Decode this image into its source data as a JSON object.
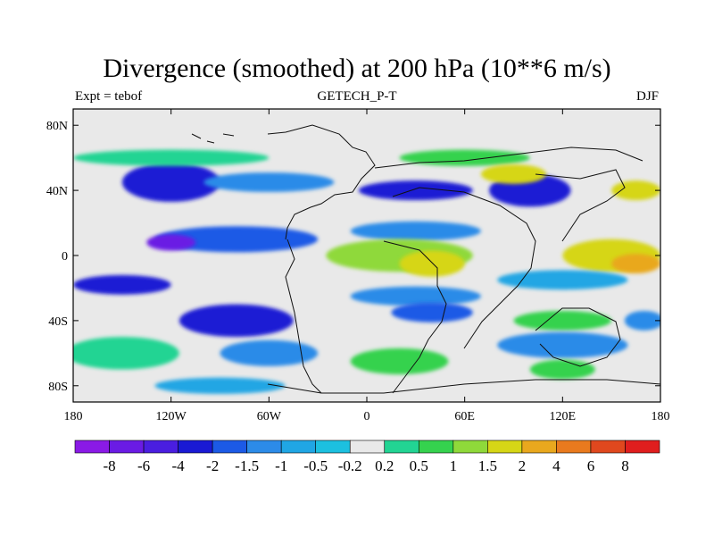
{
  "title": "Divergence (smoothed) at 200 hPa (10**6 m/s)",
  "subtitle_left": "Expt = tebof",
  "subtitle_center": "GETECH_P-T",
  "subtitle_right": "DJF",
  "map": {
    "projection": "cylindrical equidistant",
    "lon_range": [
      -180,
      180
    ],
    "lat_range": [
      -90,
      90
    ],
    "lon_ticks": [
      {
        "value": -180,
        "label": "180"
      },
      {
        "value": -120,
        "label": "120W"
      },
      {
        "value": -60,
        "label": "60W"
      },
      {
        "value": 0,
        "label": "0"
      },
      {
        "value": 60,
        "label": "60E"
      },
      {
        "value": 120,
        "label": "120E"
      },
      {
        "value": 180,
        "label": "180"
      }
    ],
    "lat_ticks": [
      {
        "value": 80,
        "label": "80N"
      },
      {
        "value": 40,
        "label": "40N"
      },
      {
        "value": 0,
        "label": "0"
      },
      {
        "value": -40,
        "label": "40S"
      },
      {
        "value": -80,
        "label": "80S"
      }
    ],
    "field_bands": [
      {
        "lat": 45,
        "lon": -120,
        "rx_deg": 30,
        "ry_deg": 12,
        "level": "-2"
      },
      {
        "lat": 45,
        "lon": -60,
        "rx_deg": 40,
        "ry_deg": 6,
        "level": "-1"
      },
      {
        "lat": 40,
        "lon": 30,
        "rx_deg": 35,
        "ry_deg": 6,
        "level": "-2"
      },
      {
        "lat": 40,
        "lon": 100,
        "rx_deg": 25,
        "ry_deg": 10,
        "level": "-2"
      },
      {
        "lat": 60,
        "lon": 60,
        "rx_deg": 40,
        "ry_deg": 5,
        "level": "1"
      },
      {
        "lat": 50,
        "lon": 90,
        "rx_deg": 20,
        "ry_deg": 6,
        "level": "2"
      },
      {
        "lat": 40,
        "lon": 165,
        "rx_deg": 15,
        "ry_deg": 6,
        "level": "2"
      },
      {
        "lat": 60,
        "lon": -120,
        "rx_deg": 60,
        "ry_deg": 5,
        "level": "0.5"
      },
      {
        "lat": 10,
        "lon": -80,
        "rx_deg": 50,
        "ry_deg": 8,
        "level": "-1.5"
      },
      {
        "lat": 8,
        "lon": -120,
        "rx_deg": 15,
        "ry_deg": 5,
        "level": "-6"
      },
      {
        "lat": 15,
        "lon": 30,
        "rx_deg": 40,
        "ry_deg": 6,
        "level": "-1"
      },
      {
        "lat": 0,
        "lon": 20,
        "rx_deg": 45,
        "ry_deg": 10,
        "level": "1.5"
      },
      {
        "lat": -5,
        "lon": 40,
        "rx_deg": 20,
        "ry_deg": 8,
        "level": "2"
      },
      {
        "lat": 0,
        "lon": 150,
        "rx_deg": 30,
        "ry_deg": 10,
        "level": "2"
      },
      {
        "lat": -5,
        "lon": 165,
        "rx_deg": 15,
        "ry_deg": 6,
        "level": "4"
      },
      {
        "lat": -18,
        "lon": -150,
        "rx_deg": 30,
        "ry_deg": 6,
        "level": "-2"
      },
      {
        "lat": -25,
        "lon": 30,
        "rx_deg": 40,
        "ry_deg": 6,
        "level": "-1"
      },
      {
        "lat": -15,
        "lon": 120,
        "rx_deg": 40,
        "ry_deg": 6,
        "level": "-0.5"
      },
      {
        "lat": -40,
        "lon": -80,
        "rx_deg": 35,
        "ry_deg": 10,
        "level": "-2"
      },
      {
        "lat": -35,
        "lon": 40,
        "rx_deg": 25,
        "ry_deg": 6,
        "level": "-1.5"
      },
      {
        "lat": -40,
        "lon": 120,
        "rx_deg": 30,
        "ry_deg": 6,
        "level": "1"
      },
      {
        "lat": -40,
        "lon": 170,
        "rx_deg": 12,
        "ry_deg": 6,
        "level": "-1"
      },
      {
        "lat": -55,
        "lon": 120,
        "rx_deg": 40,
        "ry_deg": 8,
        "level": "-1"
      },
      {
        "lat": -60,
        "lon": -150,
        "rx_deg": 35,
        "ry_deg": 10,
        "level": "0.5"
      },
      {
        "lat": -60,
        "lon": -60,
        "rx_deg": 30,
        "ry_deg": 8,
        "level": "-1"
      },
      {
        "lat": -65,
        "lon": 20,
        "rx_deg": 30,
        "ry_deg": 8,
        "level": "1"
      },
      {
        "lat": -70,
        "lon": 120,
        "rx_deg": 20,
        "ry_deg": 6,
        "level": "1"
      },
      {
        "lat": -80,
        "lon": -90,
        "rx_deg": 40,
        "ry_deg": 5,
        "level": "-0.5"
      }
    ]
  },
  "colorbar": {
    "colors": [
      "#8a1ae6",
      "#6a1be4",
      "#4a1ee0",
      "#1a1ad4",
      "#1c5ae6",
      "#2c8be8",
      "#20a6e4",
      "#1cc0e0",
      "#e9e9e9",
      "#22d493",
      "#35d24e",
      "#8fd93a",
      "#d6d616",
      "#e9a81e",
      "#e97a1e",
      "#e0481e",
      "#e01e1e"
    ],
    "labels": [
      "-8",
      "-6",
      "-4",
      "-2",
      "-1.5",
      "-1",
      "-0.5",
      "-0.2",
      "0.2",
      "0.5",
      "1",
      "1.5",
      "2",
      "4",
      "6",
      "8"
    ],
    "level_index": {
      "-8": 0,
      "-6": 1,
      "-4": 2,
      "-2": 3,
      "-1.5": 4,
      "-1": 5,
      "-0.5": 6,
      "-0.2": 7,
      "0": 8,
      "0.5": 9,
      "1": 10,
      "1.5": 11,
      "2": 12,
      "4": 13,
      "6": 14,
      "8": 15
    }
  }
}
